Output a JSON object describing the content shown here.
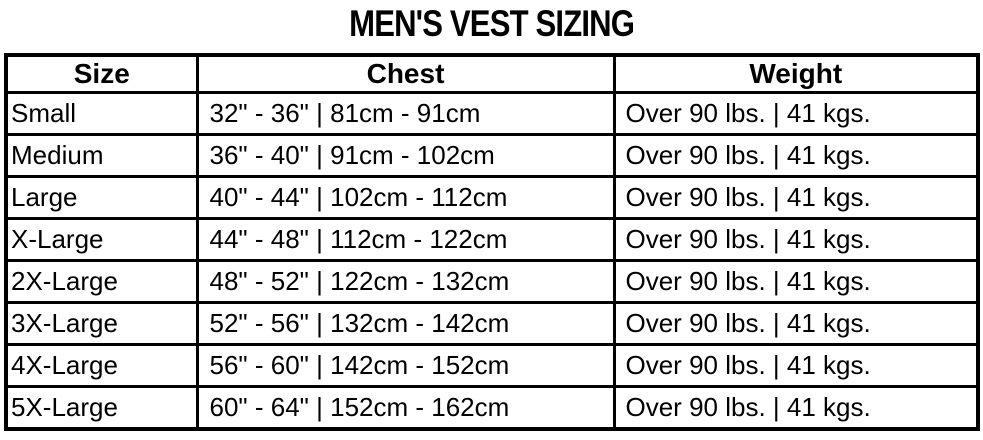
{
  "title": "MEN'S VEST SIZING",
  "colors": {
    "background": "#ffffff",
    "text": "#000000",
    "border": "#000000"
  },
  "table": {
    "columns": [
      "Size",
      "Chest",
      "Weight"
    ],
    "rows": [
      {
        "size": "Small",
        "chest": "32\" - 36\" | 81cm - 91cm",
        "weight": "Over 90 lbs. | 41 kgs."
      },
      {
        "size": "Medium",
        "chest": "36\" - 40\" | 91cm - 102cm",
        "weight": "Over 90 lbs. | 41 kgs."
      },
      {
        "size": "Large",
        "chest": "40\" - 44\" | 102cm - 112cm",
        "weight": "Over 90 lbs. | 41 kgs."
      },
      {
        "size": "X-Large",
        "chest": "44\" - 48\" | 112cm - 122cm",
        "weight": "Over 90 lbs. | 41 kgs."
      },
      {
        "size": "2X-Large",
        "chest": "48\" - 52\" | 122cm - 132cm",
        "weight": "Over 90 lbs. | 41 kgs."
      },
      {
        "size": "3X-Large",
        "chest": "52\" - 56\" | 132cm - 142cm",
        "weight": "Over 90 lbs. | 41 kgs."
      },
      {
        "size": "4X-Large",
        "chest": "56\" - 60\" | 142cm - 152cm",
        "weight": "Over 90 lbs. | 41 kgs."
      },
      {
        "size": "5X-Large",
        "chest": "60\" - 64\" | 152cm - 162cm",
        "weight": "Over 90 lbs. | 41 kgs."
      }
    ]
  }
}
